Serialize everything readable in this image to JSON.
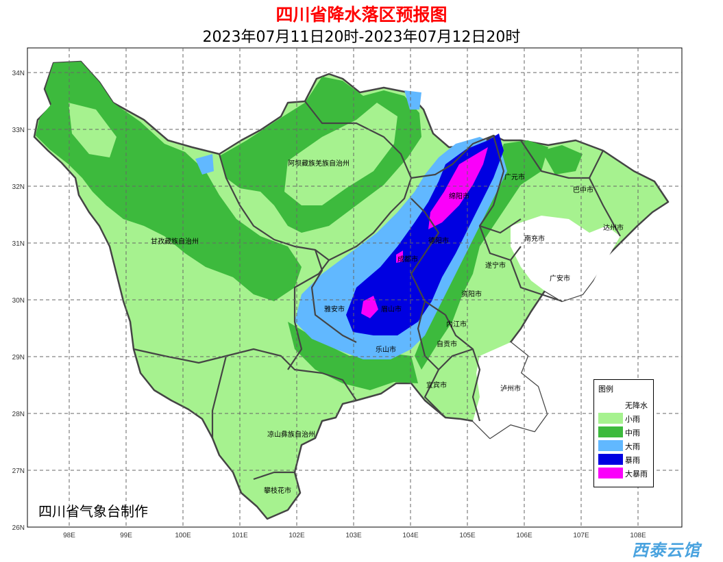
{
  "title": "四川省降水落区预报图",
  "subtitle": "2023年07月11日20时-2023年07月12日20时",
  "axes": {
    "lat": [
      "34N",
      "33N",
      "32N",
      "31N",
      "30N",
      "29N",
      "28N",
      "27N",
      "26N"
    ],
    "lon": [
      "98E",
      "99E",
      "100E",
      "101E",
      "102E",
      "103E",
      "104E",
      "105E",
      "106E",
      "107E",
      "108E"
    ]
  },
  "regions": [
    "阿坝藏族羌族自治州",
    "甘孜藏族自治州",
    "凉山彝族自治州",
    "攀枝花市",
    "雅安市",
    "眉山市",
    "乐山市",
    "成都市",
    "德阳市",
    "绵阳市",
    "广元市",
    "巴中市",
    "达州市",
    "南充市",
    "遂宁市",
    "广安市",
    "资阳市",
    "内江市",
    "自贡市",
    "宜宾市",
    "泸州市"
  ],
  "legend": {
    "title": "图例",
    "items": [
      {
        "label": "无降水",
        "color": "#ffffff"
      },
      {
        "label": "小雨",
        "color": "#a6f28f"
      },
      {
        "label": "中雨",
        "color": "#3dba3d"
      },
      {
        "label": "大雨",
        "color": "#61b8ff"
      },
      {
        "label": "暴雨",
        "color": "#0000e1"
      },
      {
        "label": "大暴雨",
        "color": "#fa00fa"
      }
    ]
  },
  "maker": "四川省气象台制作",
  "watermark": "西泰云馆"
}
